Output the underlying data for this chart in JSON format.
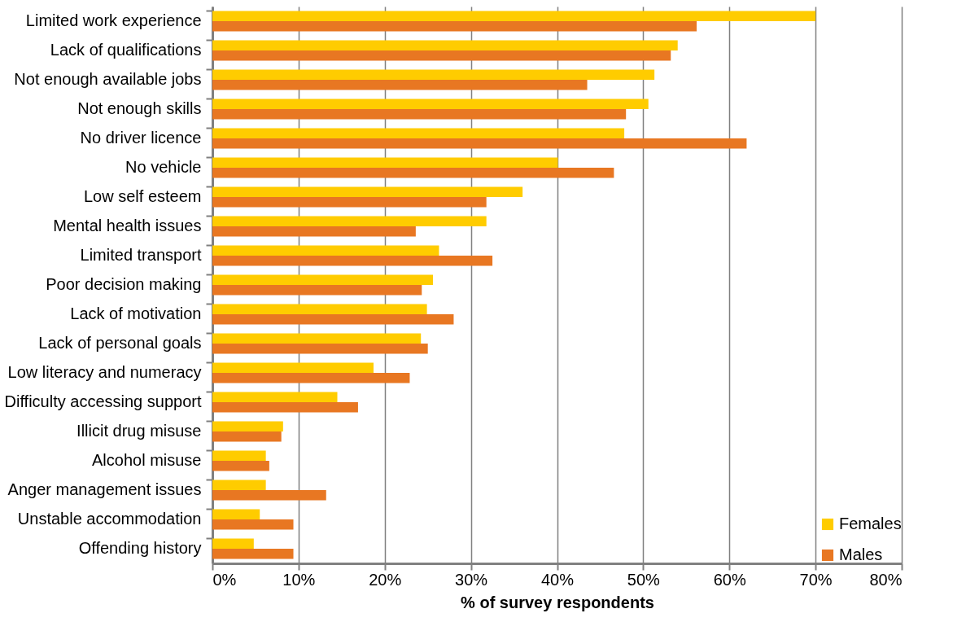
{
  "chart_data": {
    "type": "bar",
    "orientation": "horizontal",
    "xlabel": "% of survey respondents",
    "categories": [
      "Limited work experience",
      "Lack of qualifications",
      "Not enough available jobs",
      "Not enough skills",
      "No driver licence",
      "No vehicle",
      "Low self esteem",
      "Mental health issues",
      "Limited transport",
      "Poor decision making",
      "Lack of motivation",
      "Lack of personal goals",
      "Low literacy and numeracy",
      "Difficulty accessing support",
      "Illicit drug misuse",
      "Alcohol misuse",
      "Anger management issues",
      "Unstable accommodation",
      "Offending history"
    ],
    "series": [
      {
        "name": "Females",
        "color": "#ffcc00",
        "values": [
          70,
          54,
          51.3,
          50.6,
          47.8,
          40.1,
          36,
          31.8,
          26.3,
          25.6,
          24.9,
          24.2,
          18.7,
          14.5,
          8.2,
          6.2,
          6.2,
          5.5,
          4.8
        ]
      },
      {
        "name": "Males",
        "color": "#e87722",
        "values": [
          56.2,
          53.2,
          43.5,
          48,
          62,
          46.6,
          31.8,
          23.6,
          32.5,
          24.3,
          28,
          25,
          22.9,
          16.9,
          8,
          6.6,
          13.2,
          9.4,
          9.4
        ]
      }
    ],
    "xlim": [
      0,
      80
    ],
    "xticks": [
      {
        "value": 0,
        "label": "0%"
      },
      {
        "value": 10,
        "label": "10%"
      },
      {
        "value": 20,
        "label": "20%"
      },
      {
        "value": 30,
        "label": "30%"
      },
      {
        "value": 40,
        "label": "40%"
      },
      {
        "value": 50,
        "label": "50%"
      },
      {
        "value": 60,
        "label": "60%"
      },
      {
        "value": 70,
        "label": "70%"
      },
      {
        "value": 80,
        "label": "80%"
      }
    ],
    "grid": "x",
    "legend": "bottom right"
  }
}
